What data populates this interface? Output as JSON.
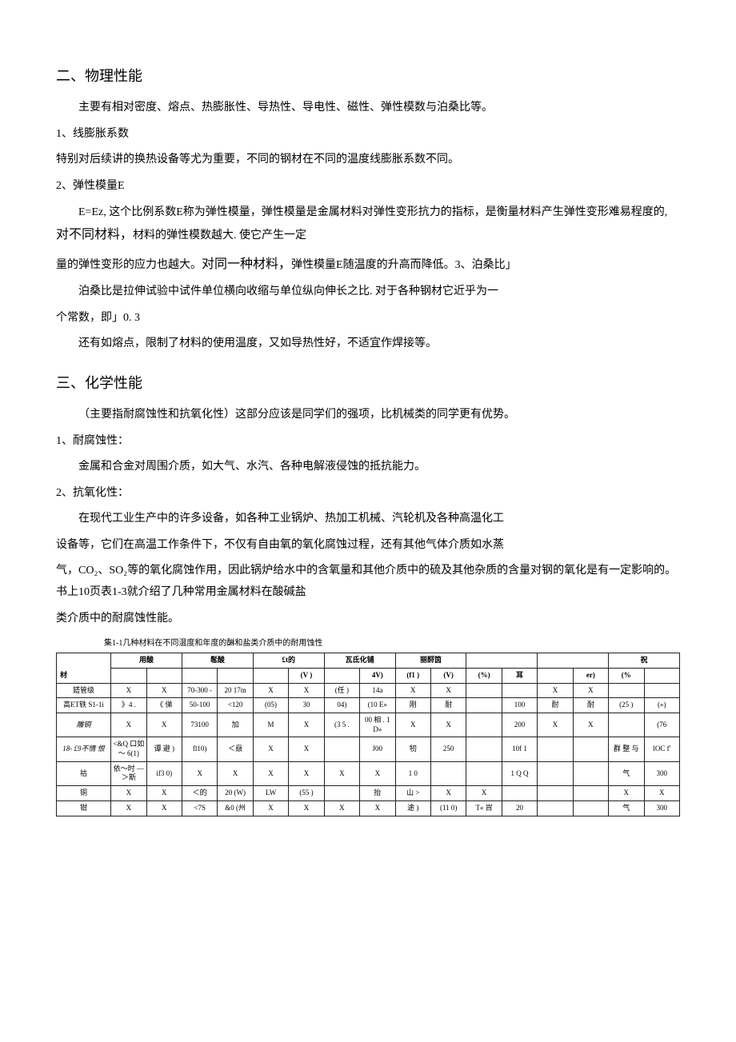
{
  "section2": {
    "heading": "二、物理性能",
    "p1": "主要有相对密度、熔点、热膨胀性、导热性、导电性、磁性、弹性模数与泊桑比等。",
    "s1_title": "1、线膨胀系数",
    "s1_p": "特别对后续讲的换热设备等尤为重要，不同的钢材在不同的温度线膨胀系数不同。",
    "s2_title": "2、弹性模量E",
    "s2_p1a": "E=Ez, 这个比例系数E称为弹性模量，弹性模量是金属材料对弹性变形抗力的指标，是衡量材料产生弹性变形难易程度的, ",
    "s2_p1b": "对不同材料，",
    "s2_p1c": "材料的弹性模数越大. 使它产生一定",
    "s2_p2a": " 量的弹性变形的应力也越大。",
    "s2_p2b": "对同一种材料，",
    "s2_p2c": "弹性模量E随温度的升高而降低。3、泊桑比」",
    "s2_p3": "泊桑比是拉伸试验中试件单位横向收缩与单位纵向伸长之比. 对于各种钢材它近乎为一",
    "s2_p4": "个常数，即」0. 3",
    "s2_p5": "还有如熔点，限制了材料的使用温度，又如导热性好，不适宜作焊接等。"
  },
  "section3": {
    "heading": "三、化学性能",
    "p1": "（主要指耐腐蚀性和抗氧化性）这部分应该是同学们的强项，比机械类的同学更有优势。",
    "s1_title": "1、耐腐蚀性：",
    "s1_p": "金属和合金对周围介质，如大气、水汽、各种电解液侵蚀的抵抗能力。",
    "s2_title": "2、抗氧化性：",
    "s2_p1": "在现代工业生产中的许多设备，如各种工业锅炉、热加工机械、汽轮机及各种高温化工",
    "s2_p2": "设备等，它们在高温工作条件下，不仅有自由氧的氧化腐蚀过程，还有其他气体介质如水蒸",
    "s2_p3": " 气，CO₂、SO₂等的氧化腐蚀作用，因此锅炉给水中的含氧量和其他介质中的硫及其他杂质的含量对钢的氧化是有一定影响的。书上10页表1-3就介绍了几种常用金属材料在酸碱盐",
    "s2_p4": "类介质中的耐腐蚀性能。"
  },
  "table": {
    "caption": "集1-1几种材料在不同温度和年度的醂和盐类介质中的耐用蚀性",
    "group_headers": [
      "材",
      "用酸",
      "髢酸",
      "£t的",
      "瓦氐化铺",
      "丽酹筃",
      "",
      "",
      "祝"
    ],
    "sub_headers": [
      "",
      "",
      "",
      "",
      "",
      "",
      "(V )",
      "",
      "4V)",
      "(f1 )",
      "(V)",
      "(%)",
      "耳",
      "",
      "er)",
      "(%",
      ""
    ],
    "rows": [
      {
        "mat": "鎝管级",
        "cells": [
          "X",
          "X",
          "70-300 -",
          "20 17m",
          "X",
          "X",
          "(任 )",
          "14a",
          "X",
          "X",
          "",
          "",
          "X",
          "X",
          "",
          ""
        ]
      },
      {
        "mat": "高ET轶 S1-1i",
        "cells": [
          "》4 .",
          "《 俤",
          "50-100",
          "<120",
          "(05)",
          "30",
          "04)",
          "(10 E»",
          "刚",
          "耐",
          "",
          "100",
          "耐",
          "耐",
          "(25 )",
          "(»)"
        ]
      },
      {
        "mat": "雕铜",
        "cells": [
          "X",
          "X",
          "73100",
          "加",
          "M",
          "X",
          "(3 5 .",
          "00 相 . 1D»",
          "X",
          "X",
          "",
          "200",
          "X",
          "X",
          "",
          "(76"
        ]
      },
      {
        "mat": "18- £9不情 恨",
        "cells": [
          "<&Q 口如～ 6(1)",
          "谭 避 )",
          "  fl10)",
          "＜赑",
          "X",
          "X",
          "",
          "J00",
          "牣",
          "250",
          "",
          "10f 1",
          "",
          "",
          "群 整 与",
          "lOC f'"
        ]
      },
      {
        "mat": "祜",
        "cells": [
          "依～时 —＞斯",
          "if3 0)",
          "X",
          "X",
          "X",
          "X",
          "X",
          "X",
          "1 0",
          "",
          "",
          "1 Q Q",
          "",
          "",
          "气",
          "300"
        ]
      },
      {
        "mat": "铜",
        "cells": [
          "X",
          "X",
          "＜的",
          "20 (W)",
          "LW",
          "(55 )",
          "",
          "抬",
          "山 >",
          "X",
          "X",
          "",
          "",
          "",
          "X",
          "X"
        ]
      },
      {
        "mat": "钳",
        "cells": [
          "X",
          "X",
          "<7S",
          "&0 (州",
          "X",
          "X",
          "X",
          "X",
          "途 )",
          "(11 0)",
          "T« 㞱",
          "20",
          "",
          "",
          "气",
          "300"
        ]
      }
    ]
  }
}
